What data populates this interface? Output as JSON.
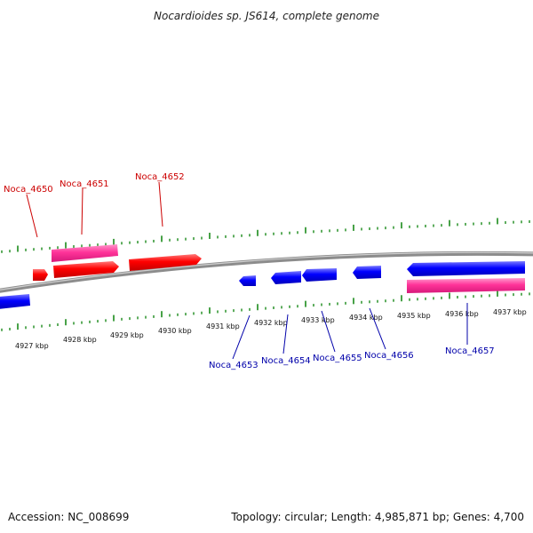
{
  "title": "Nocardioides sp. JS614, complete genome",
  "colors": {
    "forward_gene": "#ff0000",
    "reverse_gene": "#0000ff",
    "rna_gene": "#ff3399",
    "forward_label": "#cc0000",
    "reverse_label": "#0000aa",
    "tick": "#1a8a1a",
    "backbone": "#8c8c8c"
  },
  "axis": {
    "unit": "kbp",
    "ticks": [
      "4927 kbp",
      "4928 kbp",
      "4929 kbp",
      "4930 kbp",
      "4931 kbp",
      "4932 kbp",
      "4933 kbp",
      "4934 kbp",
      "4935 kbp",
      "4936 kbp",
      "4937 kbp"
    ]
  },
  "genes": [
    {
      "id": "Noca_4650",
      "strand": "forward",
      "labeled": true
    },
    {
      "id": "Noca_4651",
      "strand": "forward",
      "labeled": true
    },
    {
      "id": "Noca_4652",
      "strand": "forward",
      "labeled": true
    },
    {
      "id": "Noca_4653",
      "strand": "reverse",
      "labeled": true
    },
    {
      "id": "Noca_4654",
      "strand": "reverse",
      "labeled": true
    },
    {
      "id": "Noca_4655",
      "strand": "reverse",
      "labeled": true
    },
    {
      "id": "Noca_4656",
      "strand": "reverse",
      "labeled": true
    },
    {
      "id": "Noca_4657",
      "strand": "reverse",
      "labeled": true
    }
  ],
  "footer": {
    "accession": "Accession: NC_008699",
    "summary": "Topology: circular; Length: 4,985,871 bp; Genes: 4,700"
  }
}
